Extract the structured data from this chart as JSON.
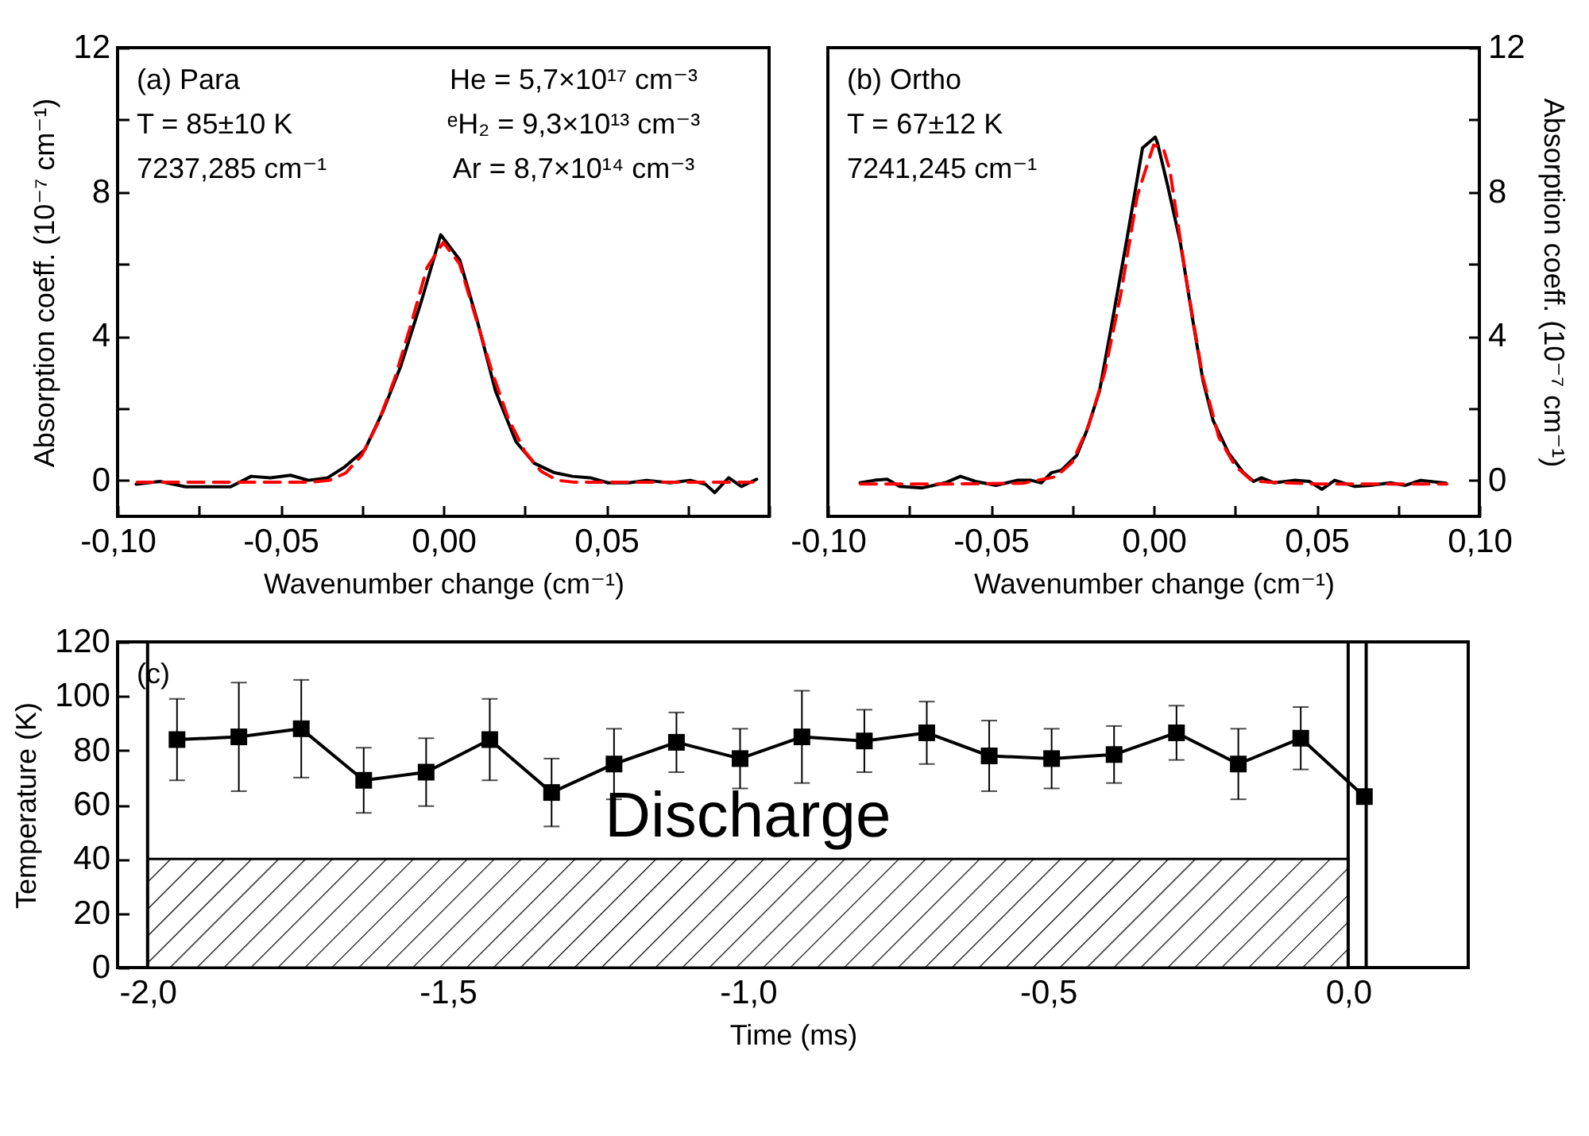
{
  "chart_data": [
    {
      "type": "line",
      "xlabel": "Wavenumber change (cm⁻¹)",
      "ylabel": "Absorption coeff. (10⁻⁷ cm⁻¹)",
      "xlim": [
        -0.1,
        0.1
      ],
      "xticks": [
        {
          "value": -0.1,
          "label": "-0,10"
        },
        {
          "value": -0.075,
          "label": null
        },
        {
          "value": -0.05,
          "label": "-0,05"
        },
        {
          "value": -0.025,
          "label": null
        },
        {
          "value": 0,
          "label": "0,00"
        },
        {
          "value": 0.025,
          "label": null
        },
        {
          "value": 0.05,
          "label": "0,05"
        },
        {
          "value": 0.075,
          "label": null
        },
        {
          "value": 0.1,
          "label": null
        }
      ],
      "ylim": [
        -1,
        12
      ],
      "yticks": [
        0,
        {
          "value": 2,
          "label": null
        },
        4,
        {
          "value": 6,
          "label": null
        },
        8,
        {
          "value": 10,
          "label": null
        },
        12
      ],
      "annotations": [
        "(a) Para",
        "T = 85±10 K",
        "7237,285 cm⁻¹",
        "He = 5,7×10¹⁷ cm⁻³",
        "ᵉH₂ = 9,3×10¹³ cm⁻³",
        "Ar = 8,7×10¹⁴ cm⁻³"
      ],
      "series": [
        {
          "color": "#000000",
          "line_style": "solid",
          "x": [
            -0.0943,
            -0.087,
            -0.0791,
            -0.072,
            -0.0653,
            -0.059,
            -0.0531,
            -0.0469,
            -0.0414,
            -0.0355,
            -0.0303,
            -0.0241,
            -0.0186,
            -0.0131,
            -0.0068,
            -0.0008,
            0.005,
            0.0105,
            0.016,
            0.0223,
            0.0278,
            0.0341,
            0.0396,
            0.0451,
            0.0506,
            0.0569,
            0.0624,
            0.0695,
            0.0758,
            0.0805,
            0.0833,
            0.0876,
            0.0915,
            0.0962
          ],
          "values": [
            -0.11,
            -0.03,
            -0.18,
            -0.18,
            -0.18,
            0.11,
            0.07,
            0.14,
            0,
            0.07,
            0.37,
            0.85,
            1.9,
            3.16,
            4.95,
            6.81,
            6.12,
            4.4,
            2.48,
            1.07,
            0.48,
            0.21,
            0.11,
            0.07,
            -0.07,
            -0.07,
            0,
            -0.07,
            0,
            -0.11,
            -0.34,
            0.07,
            -0.17,
            0.03
          ]
        },
        {
          "color": "#ff0000",
          "line_style": "dashed",
          "x": [
            -0.094,
            -0.08,
            -0.06,
            -0.04,
            -0.035,
            -0.03,
            -0.025,
            -0.02,
            -0.015,
            -0.01,
            -0.005,
            0,
            0.005,
            0.01,
            0.015,
            0.02,
            0.025,
            0.03,
            0.035,
            0.04,
            0.06,
            0.08,
            0.095
          ],
          "values": [
            -0.05,
            -0.05,
            -0.05,
            -0.05,
            0,
            0.2,
            0.7,
            1.6,
            2.8,
            4.3,
            5.9,
            6.6,
            6.0,
            4.5,
            3.0,
            1.7,
            0.8,
            0.25,
            0,
            -0.05,
            -0.05,
            -0.05,
            -0.05
          ]
        }
      ]
    },
    {
      "type": "line",
      "xlabel": "Wavenumber change (cm⁻¹)",
      "y2label": "Absorption coeff. (10⁻⁷ cm⁻¹)",
      "xlim": [
        -0.1,
        0.1
      ],
      "xticks": [
        {
          "value": -0.1,
          "label": "-0,10"
        },
        {
          "value": -0.075,
          "label": null
        },
        {
          "value": -0.05,
          "label": "-0,05"
        },
        {
          "value": -0.025,
          "label": null
        },
        {
          "value": 0,
          "label": "0,00"
        },
        {
          "value": 0.025,
          "label": null
        },
        {
          "value": 0.05,
          "label": "0,05"
        },
        {
          "value": 0.075,
          "label": null
        },
        {
          "value": 0.1,
          "label": "0,10"
        }
      ],
      "y2lim": [
        -1,
        12
      ],
      "y2ticks": [
        0,
        {
          "value": 2,
          "label": null
        },
        4,
        {
          "value": 6,
          "label": null
        },
        8,
        {
          "value": 10,
          "label": null
        },
        12
      ],
      "annotations": [
        "(b) Ortho",
        "T = 67±12 K",
        "7241,245 cm⁻¹"
      ],
      "series": [
        {
          "color": "#000000",
          "line_style": "solid",
          "axis": "y2",
          "x": [
            -0.0901,
            -0.0857,
            -0.0818,
            -0.078,
            -0.071,
            -0.064,
            -0.0593,
            -0.0547,
            -0.0484,
            -0.0419,
            -0.0376,
            -0.0345,
            -0.0314,
            -0.0283,
            -0.0236,
            -0.0205,
            -0.0166,
            -0.0127,
            -0.0081,
            -0.0034,
            0.0005,
            0.0012,
            0.0043,
            0.0082,
            0.0121,
            0.0152,
            0.0183,
            0.023,
            0.0276,
            0.0307,
            0.0331,
            0.037,
            0.0432,
            0.0478,
            0.0517,
            0.0556,
            0.0618,
            0.0665,
            0.0727,
            0.0773,
            0.082,
            0.0898
          ],
          "values": [
            -0.07,
            0,
            0.03,
            -0.17,
            -0.21,
            -0.07,
            0.11,
            -0.03,
            -0.14,
            0,
            0,
            -0.07,
            0.21,
            0.28,
            0.69,
            1.38,
            2.48,
            4.4,
            6.74,
            9.22,
            9.52,
            9.35,
            8.18,
            6.6,
            4.4,
            2.75,
            1.65,
            0.76,
            0.21,
            -0.03,
            0.07,
            -0.07,
            0,
            -0.03,
            -0.25,
            0,
            -0.17,
            -0.14,
            -0.07,
            -0.14,
            0,
            -0.08
          ]
        },
        {
          "color": "#ff0000",
          "line_style": "dashed",
          "axis": "y2",
          "x": [
            -0.09,
            -0.06,
            -0.04,
            -0.03,
            -0.025,
            -0.02,
            -0.015,
            -0.01,
            -0.005,
            0,
            0.003,
            0.005,
            0.01,
            0.015,
            0.02,
            0.025,
            0.03,
            0.035,
            0.05,
            0.07,
            0.09
          ],
          "values": [
            -0.1,
            -0.1,
            -0.08,
            0.1,
            0.5,
            1.5,
            3.0,
            5.2,
            7.9,
            9.3,
            9.2,
            8.6,
            5.6,
            2.9,
            1.2,
            0.4,
            0,
            -0.05,
            -0.1,
            -0.1,
            -0.1
          ]
        }
      ]
    },
    {
      "type": "line",
      "xlabel": "Time (ms)",
      "ylabel": "Temperature (K)",
      "marker": "square",
      "xlim": [
        -2.05,
        0.2
      ],
      "xticks": [
        {
          "value": -2,
          "label": "-2,0"
        },
        {
          "value": -1.5,
          "label": "-1,5"
        },
        {
          "value": -1,
          "label": "-1,0"
        },
        {
          "value": -0.5,
          "label": "-0,5"
        },
        {
          "value": 0,
          "label": "0,0"
        }
      ],
      "ylim": [
        0,
        120
      ],
      "yticks": [
        0,
        20,
        40,
        60,
        80,
        100,
        120
      ],
      "annotations": [
        "(c)"
      ],
      "bands": [
        {
          "axis": "x",
          "from": -2,
          "to": 0,
          "label": "Discharge"
        }
      ],
      "ref_lines": [
        {
          "axis": "x",
          "value": -2
        },
        {
          "axis": "x",
          "value": 0
        },
        {
          "axis": "x",
          "value": 0.03
        }
      ],
      "series": [
        {
          "color": "#000000",
          "x": [
            -1.951,
            -1.848,
            -1.744,
            -1.64,
            -1.536,
            -1.43,
            -1.327,
            -1.223,
            -1.119,
            -1.013,
            -0.91,
            -0.806,
            -0.702,
            -0.598,
            -0.494,
            -0.39,
            -0.286,
            -0.183,
            -0.079,
            0.027
          ],
          "values": [
            84,
            85,
            88,
            69,
            72,
            84,
            64.5,
            75,
            83,
            77,
            85,
            83.5,
            86.5,
            78,
            77,
            78.5,
            86.5,
            75,
            84.5,
            63
          ],
          "errors": [
            15,
            20,
            18,
            12,
            12.5,
            15,
            12.5,
            13,
            11,
            11,
            17,
            11.5,
            11.5,
            13,
            11,
            10.5,
            10,
            13,
            11.5,
            null
          ]
        }
      ]
    }
  ]
}
